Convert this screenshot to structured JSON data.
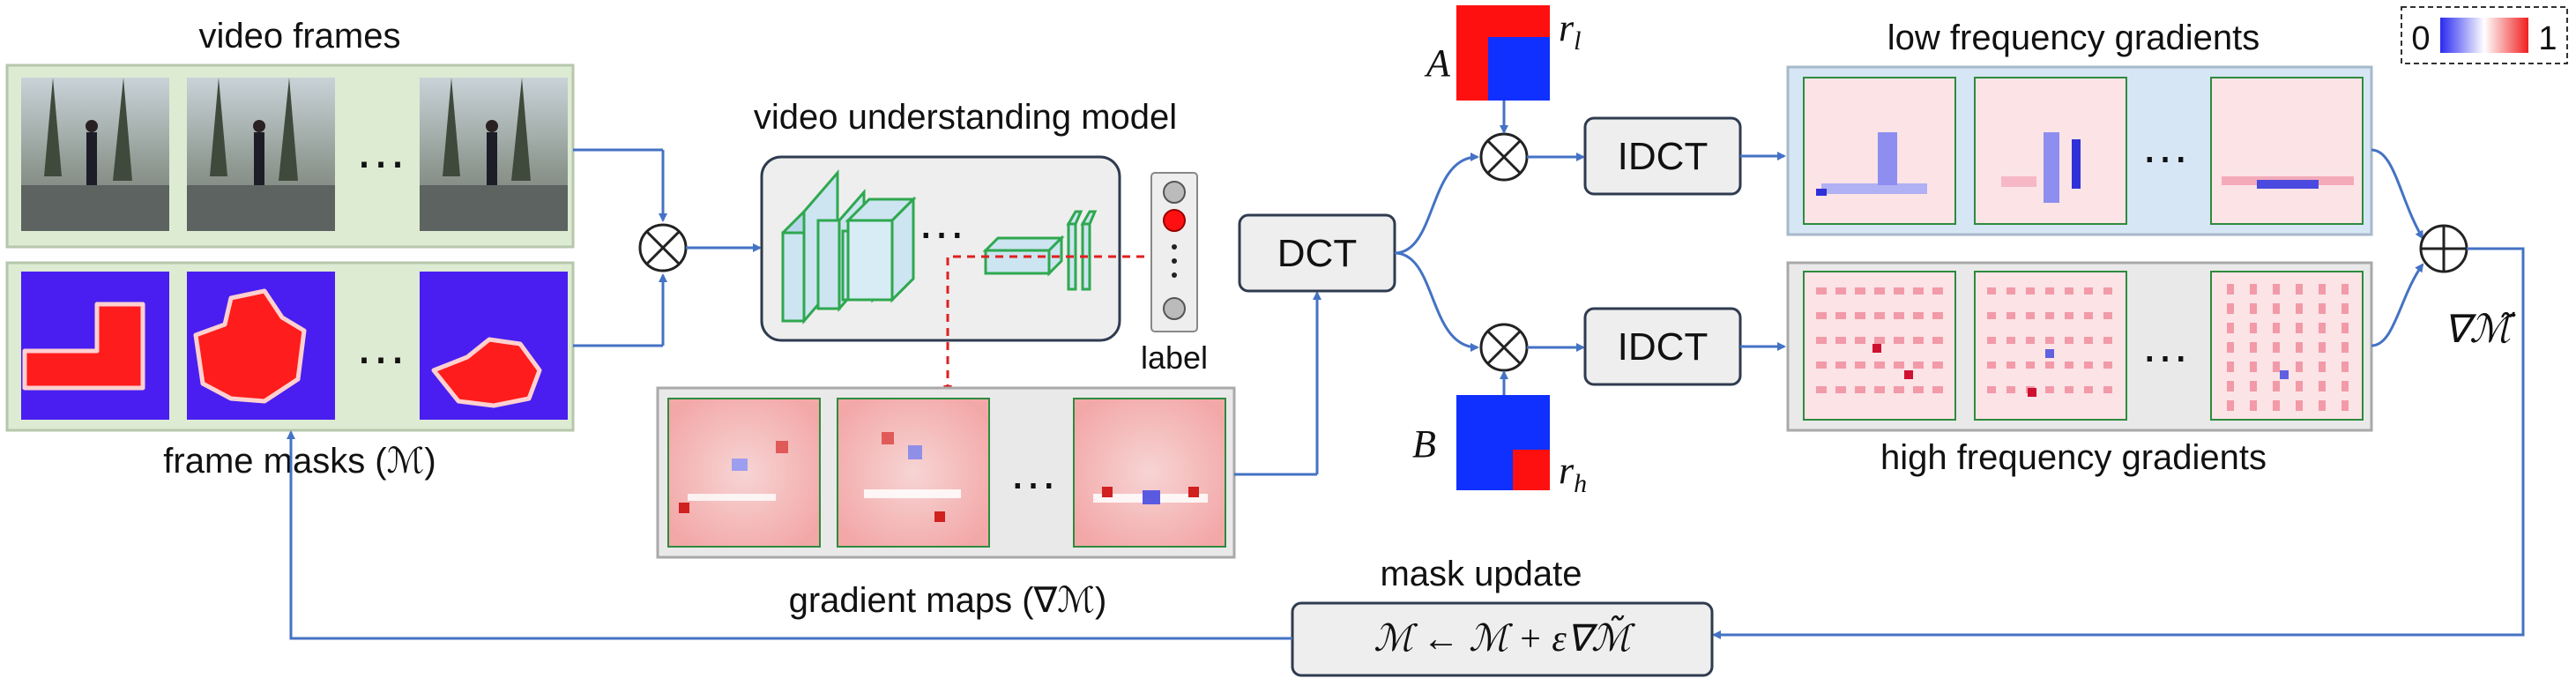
{
  "labels": {
    "video_frames": "video frames",
    "frame_masks": "frame masks (ℳ)",
    "video_model": "video understanding model",
    "label": "label",
    "gradient_maps": "gradient maps (∇ℳ)",
    "dct": "DCT",
    "idct_low": "IDCT",
    "idct_high": "IDCT",
    "low_freq": "low frequency gradients",
    "high_freq": "high frequency gradients",
    "mask_update": "mask update",
    "update_formula": "ℳ ← ℳ + ε∇ℳ̃",
    "grad_sum": "∇ℳ̃",
    "matrix_a": "A",
    "matrix_b": "B",
    "r_l": "r",
    "r_l_sub": "l",
    "r_h": "r",
    "r_h_sub": "h",
    "ellipsis": "…",
    "colorbar_min": "0",
    "colorbar_max": "1"
  },
  "colors": {
    "arrow": "#4472c4",
    "dashed_arrow": "#e02020",
    "frames_panel": "#dcebd2",
    "low_panel": "#d6e6f5",
    "neutral_panel": "#e9e9e9",
    "mask_blue": "#4a1ef0",
    "mask_red": "#ff1c1c",
    "node_box": "#eeeeee",
    "colorbar_low": "#2a2af0",
    "colorbar_high": "#f02020"
  },
  "icons": [
    "multiply-circle-icon",
    "plus-circle-icon",
    "video-frame-thumbnail",
    "mask-thumbnail",
    "gradient-heatmap-thumbnail",
    "cnn-layers-icon",
    "label-output-nodes-icon",
    "frequency-selection-matrix-icon"
  ]
}
